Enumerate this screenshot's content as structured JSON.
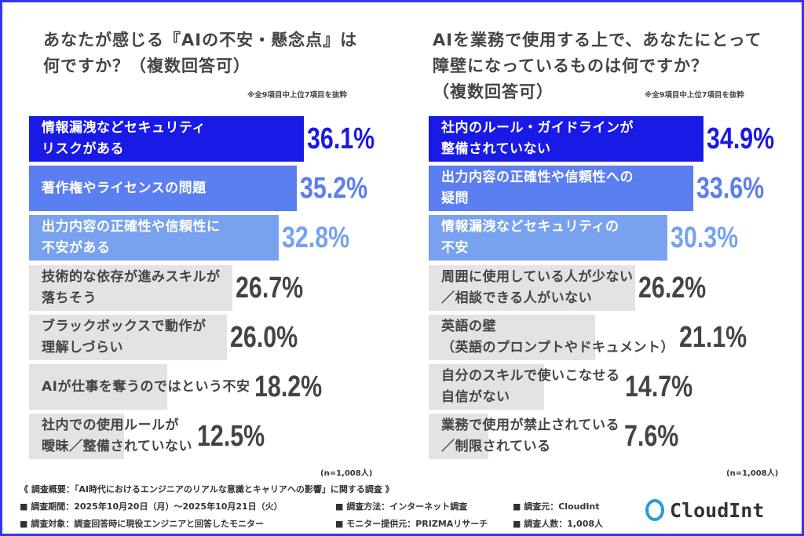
{
  "chart_data": [
    {
      "type": "bar",
      "orientation": "horizontal",
      "title": "あなたが感じる『AIの不安・懸念点』は\n何ですか？（複数回答可）",
      "note": "※全9項目中上位7項目を抜粋",
      "sample": "(n=1,008人)",
      "categories": [
        "情報漏洩などセキュリティ\nリスクがある",
        "著作権やライセンスの問題",
        "出力内容の正確性や信頼性に\n不安がある",
        "技術的な依存が進みスキルが\n落ちそう",
        "ブラックボックスで動作が\n理解しづらい",
        "AIが仕事を奪うのではという不安",
        "社内での使用ルールが\n曖昧／整備されていない"
      ],
      "values": [
        36.1,
        35.2,
        32.8,
        26.7,
        26.0,
        18.2,
        12.5
      ],
      "unit": "%"
    },
    {
      "type": "bar",
      "orientation": "horizontal",
      "title": "AIを業務で使用する上で、あなたにとって\n障壁になっているものは何ですか？\n（複数回答可）",
      "note": "※全9項目中上位7項目を抜粋",
      "sample": "(n=1,008人)",
      "categories": [
        "社内のルール・ガイドラインが\n整備されていない",
        "出力内容の正確性や信頼性への\n疑問",
        "情報漏洩などセキュリティの\n不安",
        "周囲に使用している人が少ない\n／相談できる人がいない",
        "英語の壁\n（英語のプロンプトやドキュメント）",
        "自分のスキルで使いこなせる\n自信がない",
        "業務で使用が禁止されている\n／制限されている"
      ],
      "values": [
        34.9,
        33.6,
        30.3,
        26.2,
        21.1,
        14.7,
        7.6
      ],
      "unit": "%"
    }
  ],
  "colors": {
    "rank1": "#1a1ae6",
    "rank2": "#5b7ef0",
    "rank3": "#78a2f0",
    "other": "#e3e3e3",
    "other_text": "#444444",
    "frame": "#3434ee",
    "logo": "#2a9ad8"
  },
  "footer": {
    "heading": "《 調査概要：「AI時代におけるエンジニアのリアルな意識とキャリアへの影響」に関する調査 》",
    "items": [
      "■ 調査期間：2025年10月20日（月）〜2025年10月21日（火）",
      "■ 調査方法：インターネット調査",
      "■ 調査元：CloudInt",
      "■ 調査対象：調査回答時に現役エンジニアと回答したモニター",
      "■ モニター提供元：PRIZMAリサーチ",
      "■ 調査人数：1,008人"
    ]
  },
  "logo": {
    "text": "CloudInt",
    "icon": "cloudint-ring-icon"
  }
}
